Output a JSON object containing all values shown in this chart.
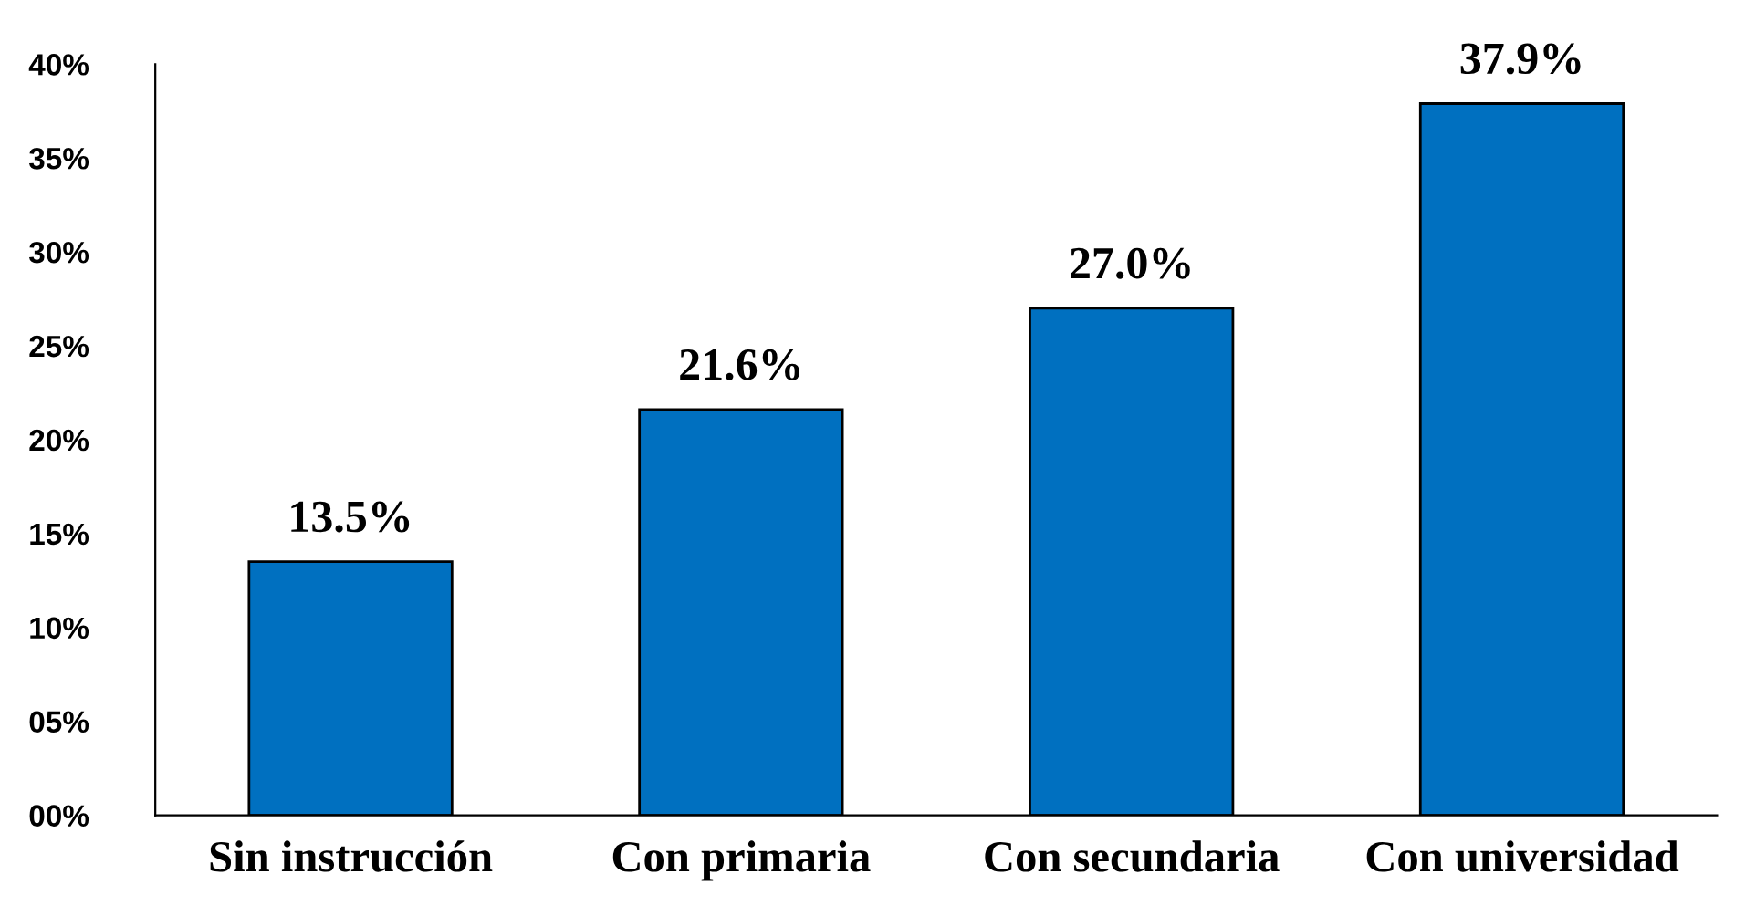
{
  "chart_data": {
    "type": "bar",
    "categories": [
      "Sin instrucción",
      "Con primaria",
      "Con secundaria",
      "Con universidad"
    ],
    "values": [
      13.5,
      21.6,
      27.0,
      37.9
    ],
    "value_labels": [
      "13.5%",
      "21.6%",
      "27.0%",
      "37.9%"
    ],
    "color": "#0070c0",
    "ylim": [
      0,
      40
    ],
    "yticks": [
      {
        "value": 0,
        "label": "00%"
      },
      {
        "value": 5,
        "label": "05%"
      },
      {
        "value": 10,
        "label": "10%"
      },
      {
        "value": 15,
        "label": "15%"
      },
      {
        "value": 20,
        "label": "20%"
      },
      {
        "value": 25,
        "label": "25%"
      },
      {
        "value": 30,
        "label": "30%"
      },
      {
        "value": 35,
        "label": "35%"
      },
      {
        "value": 40,
        "label": "40%"
      }
    ],
    "grid": false,
    "legend": false
  }
}
